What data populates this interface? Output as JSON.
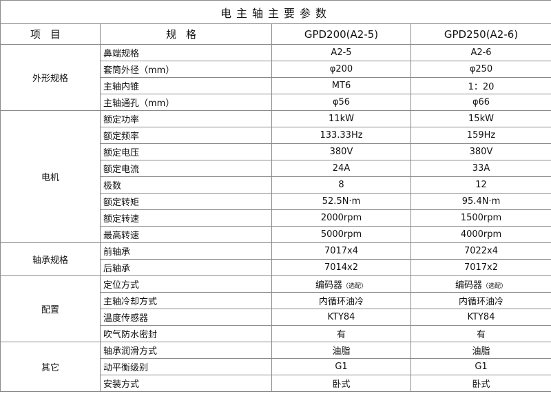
{
  "title": "电主轴主要参数",
  "header": {
    "item": "项目",
    "spec": "规格",
    "model_a": "GPD200(A2-5)",
    "model_b": "GPD250(A2-6)"
  },
  "groups": [
    {
      "name": "外形规格",
      "rows": [
        {
          "spec": "鼻端规格",
          "a": "A2-5",
          "b": "A2-6"
        },
        {
          "spec": "套筒外径（mm）",
          "a": "φ200",
          "b": "φ250"
        },
        {
          "spec": "主轴内锥",
          "a": "MT6",
          "b": "1：20"
        },
        {
          "spec": "主轴通孔（mm）",
          "a": "φ56",
          "b": "φ66"
        }
      ]
    },
    {
      "name": "电机",
      "rows": [
        {
          "spec": "额定功率",
          "a": "11kW",
          "b": "15kW"
        },
        {
          "spec": "额定频率",
          "a": "133.33Hz",
          "b": "159Hz"
        },
        {
          "spec": "额定电压",
          "a": "380V",
          "b": "380V"
        },
        {
          "spec": "额定电流",
          "a": "24A",
          "b": "33A"
        },
        {
          "spec": "极数",
          "a": "8",
          "b": "12"
        },
        {
          "spec": "额定转矩",
          "a": "52.5N·m",
          "b": "95.4N·m"
        },
        {
          "spec": "额定转速",
          "a": "2000rpm",
          "b": "1500rpm"
        },
        {
          "spec": "最高转速",
          "a": "5000rpm",
          "b": "4000rpm"
        }
      ]
    },
    {
      "name": "轴承规格",
      "rows": [
        {
          "spec": "前轴承",
          "a": "7017x4",
          "b": "7022x4"
        },
        {
          "spec": "后轴承",
          "a": "7014x2",
          "b": "7017x2"
        }
      ]
    },
    {
      "name": "配置",
      "rows": [
        {
          "spec": "定位方式",
          "a": "编码器",
          "a_note": "（选配）",
          "b": "编码器",
          "b_note": "（选配）"
        },
        {
          "spec": "主轴冷却方式",
          "a": "内循环油冷",
          "b": "内循环油冷"
        },
        {
          "spec": "温度传感器",
          "a": "KTY84",
          "b": "KTY84"
        },
        {
          "spec": "吹气防水密封",
          "a": "有",
          "b": "有"
        }
      ]
    },
    {
      "name": "其它",
      "rows": [
        {
          "spec": "轴承润滑方式",
          "a": "油脂",
          "b": "油脂"
        },
        {
          "spec": "动平衡级别",
          "a": "G1",
          "b": "G1"
        },
        {
          "spec": "安装方式",
          "a": "卧式",
          "b": "卧式"
        }
      ]
    }
  ]
}
